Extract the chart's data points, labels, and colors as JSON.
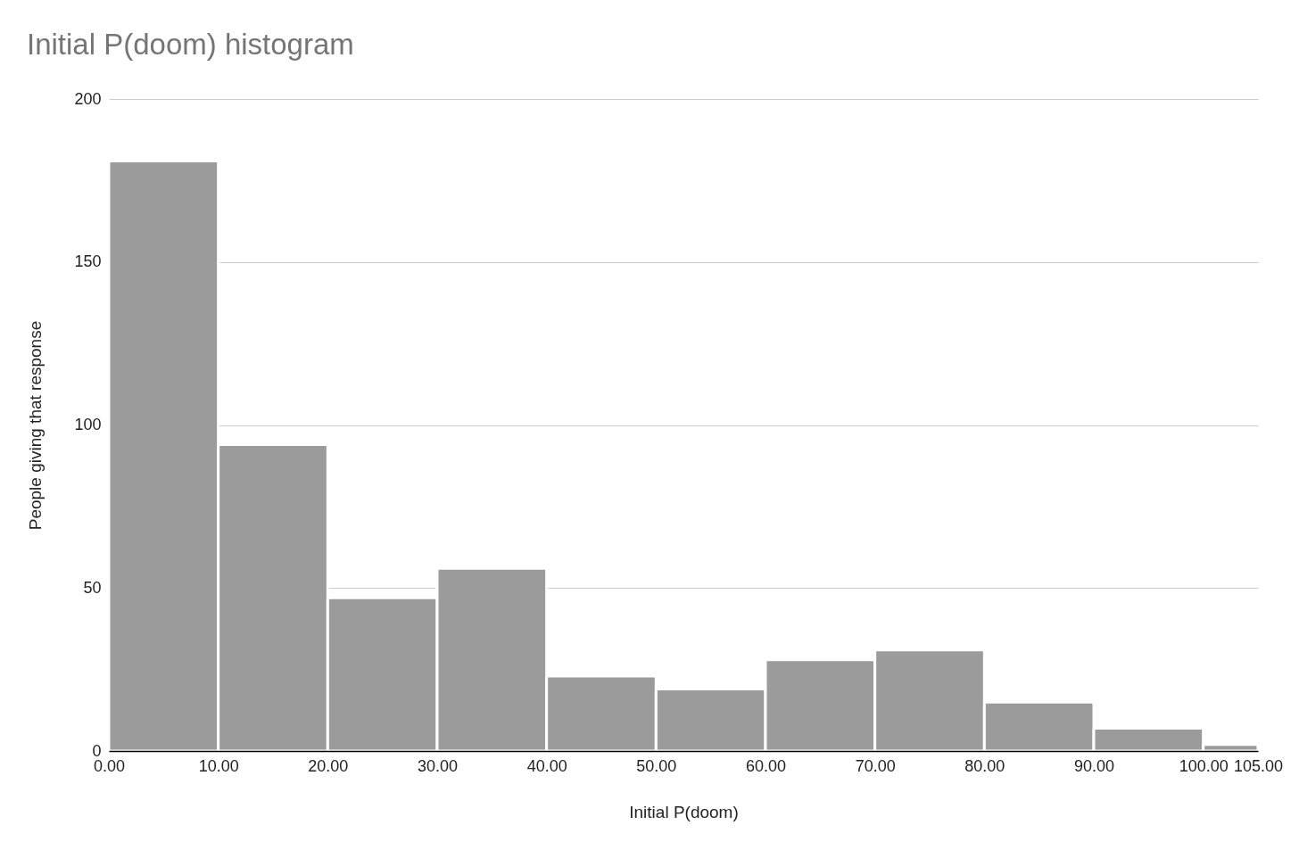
{
  "chart_data": {
    "type": "histogram",
    "title": "Initial P(doom) histogram",
    "xlabel": "Initial P(doom)",
    "ylabel": "People giving that response",
    "bins": [
      0,
      10,
      20,
      30,
      40,
      50,
      60,
      70,
      80,
      90,
      100,
      105
    ],
    "values": [
      181,
      94,
      47,
      56,
      23,
      19,
      28,
      31,
      15,
      7,
      2
    ],
    "color": "#9b9b9b",
    "xlim": [
      0,
      105
    ],
    "ylim": [
      0,
      200
    ],
    "xticks": [
      {
        "value": 0,
        "label": "0.00"
      },
      {
        "value": 10,
        "label": "10.00"
      },
      {
        "value": 20,
        "label": "20.00"
      },
      {
        "value": 30,
        "label": "30.00"
      },
      {
        "value": 40,
        "label": "40.00"
      },
      {
        "value": 50,
        "label": "50.00"
      },
      {
        "value": 60,
        "label": "60.00"
      },
      {
        "value": 70,
        "label": "70.00"
      },
      {
        "value": 80,
        "label": "80.00"
      },
      {
        "value": 90,
        "label": "90.00"
      },
      {
        "value": 100,
        "label": "100.00"
      },
      {
        "value": 105,
        "label": "105.00"
      }
    ],
    "yticks": [
      0,
      50,
      100,
      150,
      200
    ],
    "grid": "y"
  }
}
